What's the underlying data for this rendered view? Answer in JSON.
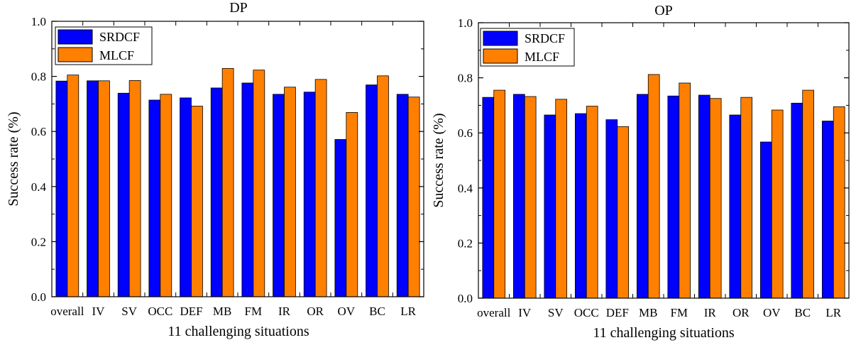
{
  "colors": {
    "SRDCF": "#0000ff",
    "MLCF": "#ff8000"
  },
  "chart_data": [
    {
      "type": "bar",
      "title": "DP",
      "xlabel": "11 challenging situations",
      "ylabel": "Success rate (%)",
      "ylim": [
        0,
        1.0
      ],
      "yticks": [
        "0.0",
        "0.2",
        "0.4",
        "0.6",
        "0.8",
        "1.0"
      ],
      "legend_position": "top-left",
      "categories": [
        "overall",
        "IV",
        "SV",
        "OCC",
        "DEF",
        "MB",
        "FM",
        "IR",
        "OR",
        "OV",
        "BC",
        "LR"
      ],
      "series": [
        {
          "name": "SRDCF",
          "values": [
            0.783,
            0.784,
            0.739,
            0.714,
            0.722,
            0.758,
            0.776,
            0.735,
            0.743,
            0.571,
            0.769,
            0.735
          ]
        },
        {
          "name": "MLCF",
          "values": [
            0.805,
            0.784,
            0.785,
            0.735,
            0.692,
            0.829,
            0.823,
            0.761,
            0.789,
            0.669,
            0.802,
            0.725
          ]
        }
      ]
    },
    {
      "type": "bar",
      "title": "OP",
      "xlabel": "11 challenging situations",
      "ylabel": "Success rate (%)",
      "ylim": [
        0,
        1.0
      ],
      "yticks": [
        "0.0",
        "0.2",
        "0.4",
        "0.6",
        "0.8",
        "1.0"
      ],
      "legend_position": "top-left",
      "categories": [
        "overall",
        "IV",
        "SV",
        "OCC",
        "DEF",
        "MB",
        "FM",
        "IR",
        "OR",
        "OV",
        "BC",
        "LR"
      ],
      "series": [
        {
          "name": "SRDCF",
          "values": [
            0.729,
            0.74,
            0.665,
            0.67,
            0.648,
            0.74,
            0.734,
            0.737,
            0.665,
            0.567,
            0.708,
            0.643
          ]
        },
        {
          "name": "MLCF",
          "values": [
            0.755,
            0.732,
            0.722,
            0.697,
            0.623,
            0.812,
            0.781,
            0.725,
            0.729,
            0.683,
            0.755,
            0.695
          ]
        }
      ]
    }
  ]
}
